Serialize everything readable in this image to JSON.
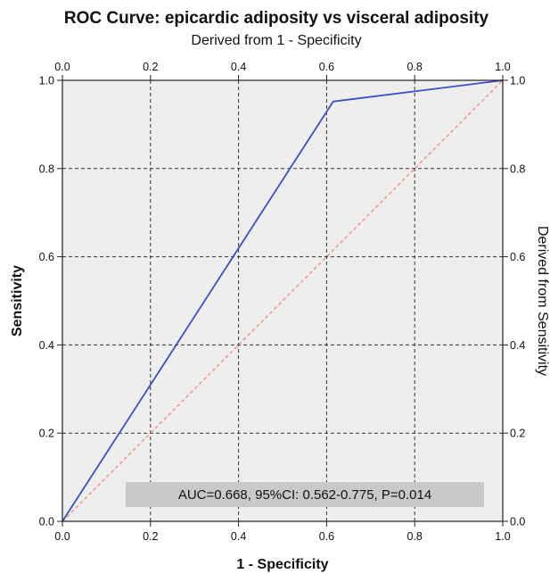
{
  "chart_data": {
    "type": "line",
    "title": "ROC Curve: epicardic adiposity vs visceral adiposity",
    "top_axis_label": "Derived from 1 - Specificity",
    "xlabel": "1 - Specificity",
    "ylabel": "Sensitivity",
    "right_axis_label": "Derived from Sensitivity",
    "xlim": [
      0,
      1
    ],
    "ylim": [
      0,
      1
    ],
    "x_ticks": [
      "0.0",
      "0.2",
      "0.4",
      "0.6",
      "0.8",
      "1.0"
    ],
    "y_ticks": [
      "0.0",
      "0.2",
      "0.4",
      "0.6",
      "0.8",
      "1.0"
    ],
    "grid": true,
    "annotation": "AUC=0.668, 95%CI: 0.562-0.775, P=0.014",
    "series": [
      {
        "role": "roc-curve",
        "color": "#3b4fc9",
        "x": [
          0,
          0.615,
          1.0
        ],
        "y": [
          0,
          0.952,
          1.0
        ]
      },
      {
        "role": "reference-line",
        "color": "#f09a8e",
        "x": [
          0,
          1
        ],
        "y": [
          0,
          1
        ]
      }
    ],
    "plot_background": "#eeeeee"
  }
}
